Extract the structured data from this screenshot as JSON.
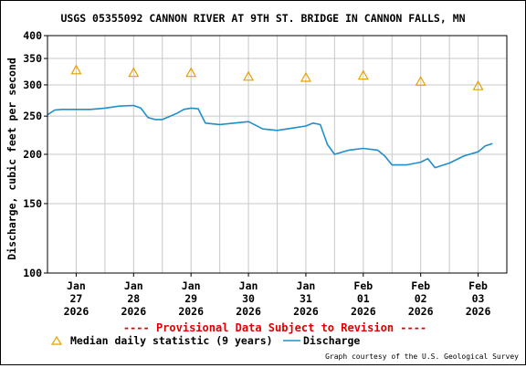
{
  "chart_data": {
    "type": "line",
    "title": "USGS 05355092 CANNON RIVER AT 9TH ST. BRIDGE IN CANNON FALLS, MN",
    "ylabel": "Discharge, cubic feet per second",
    "xlabel": "",
    "y_scale": "log",
    "ylim": [
      100,
      400
    ],
    "y_ticks": [
      100,
      150,
      200,
      250,
      300,
      350,
      400
    ],
    "y_tick_labels": [
      "100",
      "150",
      "200",
      "250",
      "300",
      "350",
      "400"
    ],
    "xlim": [
      "2026-01-26T12:00",
      "2026-02-03T12:00"
    ],
    "x_ticks": [
      {
        "x": "2026-01-27T00:00",
        "label": [
          "Jan",
          "27",
          "2026"
        ]
      },
      {
        "x": "2026-01-28T00:00",
        "label": [
          "Jan",
          "28",
          "2026"
        ]
      },
      {
        "x": "2026-01-29T00:00",
        "label": [
          "Jan",
          "29",
          "2026"
        ]
      },
      {
        "x": "2026-01-30T00:00",
        "label": [
          "Jan",
          "30",
          "2026"
        ]
      },
      {
        "x": "2026-01-31T00:00",
        "label": [
          "Jan",
          "31",
          "2026"
        ]
      },
      {
        "x": "2026-02-01T00:00",
        "label": [
          "Feb",
          "01",
          "2026"
        ]
      },
      {
        "x": "2026-02-02T00:00",
        "label": [
          "Feb",
          "02",
          "2026"
        ]
      },
      {
        "x": "2026-02-03T00:00",
        "label": [
          "Feb",
          "03",
          "2026"
        ]
      }
    ],
    "grid": true,
    "series": [
      {
        "name": "Discharge",
        "color": "#1f8fca",
        "style": "line",
        "x": [
          "2026-01-26T12:00",
          "2026-01-26T15:00",
          "2026-01-26T18:00",
          "2026-01-27T00:00",
          "2026-01-27T06:00",
          "2026-01-27T12:00",
          "2026-01-27T18:00",
          "2026-01-28T00:00",
          "2026-01-28T03:00",
          "2026-01-28T06:00",
          "2026-01-28T09:00",
          "2026-01-28T12:00",
          "2026-01-28T18:00",
          "2026-01-28T21:00",
          "2026-01-29T00:00",
          "2026-01-29T03:00",
          "2026-01-29T06:00",
          "2026-01-29T12:00",
          "2026-01-29T18:00",
          "2026-01-30T00:00",
          "2026-01-30T06:00",
          "2026-01-30T12:00",
          "2026-01-30T18:00",
          "2026-01-31T00:00",
          "2026-01-31T03:00",
          "2026-01-31T06:00",
          "2026-01-31T09:00",
          "2026-01-31T12:00",
          "2026-01-31T18:00",
          "2026-02-01T00:00",
          "2026-02-01T06:00",
          "2026-02-01T09:00",
          "2026-02-01T12:00",
          "2026-02-01T18:00",
          "2026-02-02T00:00",
          "2026-02-02T03:00",
          "2026-02-02T06:00",
          "2026-02-02T12:00",
          "2026-02-02T18:00",
          "2026-02-03T00:00",
          "2026-02-03T03:00",
          "2026-02-03T06:00"
        ],
        "values": [
          252,
          259,
          260,
          260,
          260,
          262,
          265,
          266,
          262,
          248,
          245,
          245,
          254,
          260,
          262,
          261,
          240,
          238,
          240,
          242,
          232,
          230,
          233,
          236,
          240,
          238,
          212,
          200,
          205,
          207,
          205,
          198,
          188,
          188,
          191,
          195,
          185,
          190,
          198,
          203,
          210,
          213
        ]
      },
      {
        "name": "Median daily statistic (9 years)",
        "color": "#e8a000",
        "style": "triangle",
        "x": [
          "2026-01-27T00:00",
          "2026-01-28T00:00",
          "2026-01-29T00:00",
          "2026-01-30T00:00",
          "2026-01-31T00:00",
          "2026-02-01T00:00",
          "2026-02-02T00:00",
          "2026-02-03T00:00"
        ],
        "values": [
          327,
          322,
          322,
          315,
          313,
          317,
          306,
          298
        ]
      }
    ]
  },
  "provisional_note": "---- Provisional Data Subject to Revision ----",
  "courtesy": "Graph courtesy of the U.S. Geological Survey"
}
